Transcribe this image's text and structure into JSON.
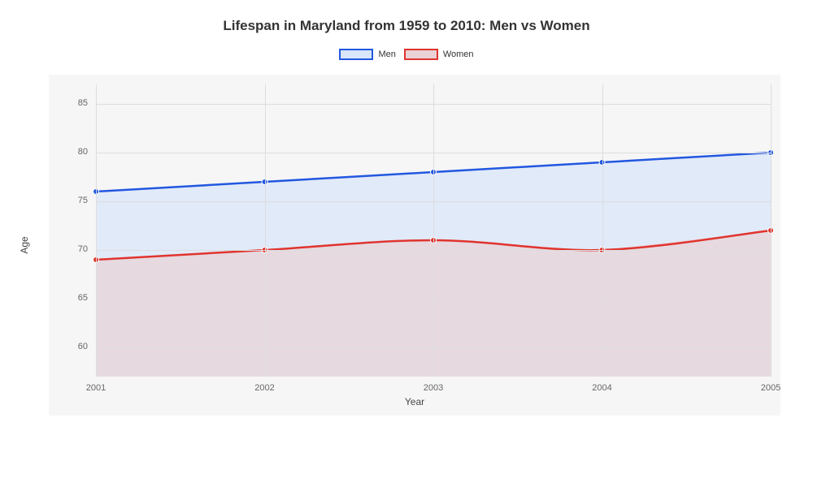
{
  "chart": {
    "type": "line-area",
    "title": "Lifespan in Maryland from 1959 to 2010: Men vs Women",
    "title_fontsize": 17,
    "background_color": "#ffffff",
    "plot_background": "#f6f6f6",
    "grid_color": "#dddddd",
    "x_axis": {
      "label": "Year",
      "categories": [
        "2001",
        "2002",
        "2003",
        "2004",
        "2005"
      ],
      "label_fontsize": 12,
      "tick_fontsize": 11
    },
    "y_axis": {
      "label": "Age",
      "min": 57,
      "max": 87,
      "ticks": [
        60,
        65,
        70,
        75,
        80,
        85
      ],
      "label_fontsize": 12,
      "tick_fontsize": 11
    },
    "series": [
      {
        "name": "Men",
        "values": [
          76,
          77,
          78,
          79,
          80
        ],
        "line_color": "#2257e0",
        "fill_color": "#d9e6f9",
        "fill_opacity": 0.75,
        "line_width": 2.5,
        "marker_radius": 3.5,
        "marker_fill": "#2257e0",
        "marker_border": "#ffffff"
      },
      {
        "name": "Women",
        "values": [
          69,
          70,
          71,
          70,
          72
        ],
        "line_color": "#e0342e",
        "fill_color": "#e9d1d6",
        "fill_opacity": 0.7,
        "line_width": 2.5,
        "marker_radius": 3.5,
        "marker_fill": "#e0342e",
        "marker_border": "#ffffff"
      }
    ],
    "legend": {
      "position": "top",
      "items": [
        {
          "label": "Men",
          "border_color": "#2257e0",
          "fill_color": "#d9e6f9"
        },
        {
          "label": "Women",
          "border_color": "#e0342e",
          "fill_color": "#e9d1d6"
        }
      ],
      "swatch_width": 42,
      "swatch_height": 14,
      "fontsize": 11
    }
  }
}
